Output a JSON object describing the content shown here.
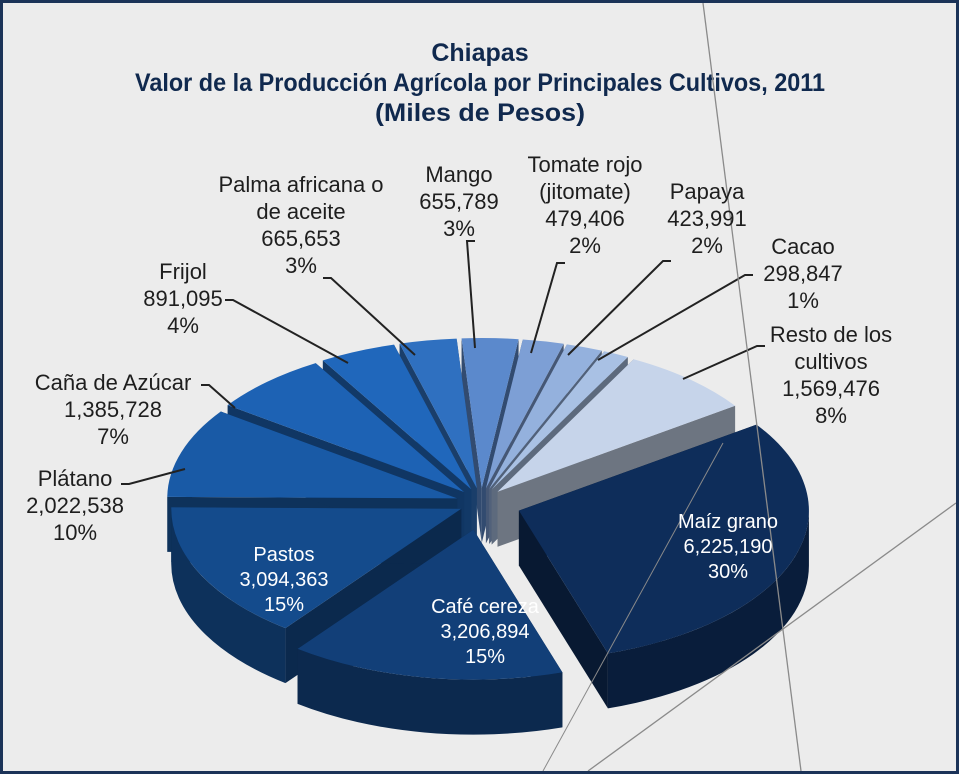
{
  "chart_data": {
    "type": "pie",
    "title": "Chiapas",
    "subtitle": "Valor de la Producción Agrícola por Principales Cultivos, 2011",
    "note": "(Miles de Pesos)",
    "categories": [
      "Maíz grano",
      "Café cereza",
      "Pastos",
      "Plátano",
      "Caña de Azúcar",
      "Frijol",
      "Palma africana o de aceite",
      "Mango",
      "Tomate rojo (jitomate)",
      "Papaya",
      "Cacao",
      "Resto de los cultivos"
    ],
    "values": [
      6225190,
      3206894,
      3094363,
      2022538,
      1385728,
      891095,
      665653,
      655789,
      479406,
      423991,
      298847,
      1569476
    ],
    "value_labels": [
      "6,225,190",
      "3,206,894",
      "3,094,363",
      "2,022,538",
      "1,385,728",
      "891,095",
      "665,653",
      "655,789",
      "479,406",
      "423,991",
      "298,847",
      "1,569,476"
    ],
    "percents": [
      30,
      15,
      15,
      10,
      7,
      4,
      3,
      3,
      2,
      2,
      1,
      8
    ],
    "percent_labels": [
      "30%",
      "15%",
      "15%",
      "10%",
      "7%",
      "4%",
      "3%",
      "3%",
      "2%",
      "2%",
      "1%",
      "8%"
    ],
    "colors": [
      "#0e2d5a",
      "#123f78",
      "#144b8c",
      "#195aa6",
      "#1d62b4",
      "#2067bb",
      "#2f70c0",
      "#5b89cc",
      "#7d9fd5",
      "#94b1dd",
      "#a9c1e4",
      "#c6d4ea"
    ]
  }
}
